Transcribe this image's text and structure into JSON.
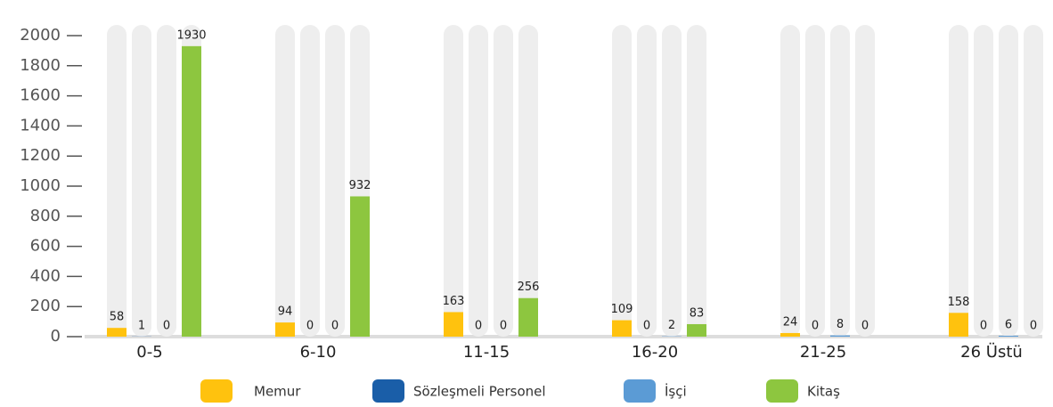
{
  "chart_data": {
    "type": "bar",
    "categories": [
      "0-5",
      "6-10",
      "11-15",
      "16-20",
      "21-25",
      "26 Üstü"
    ],
    "series": [
      {
        "name": "Memur",
        "color": "#ffc20e",
        "values": [
          58,
          94,
          163,
          109,
          24,
          158
        ]
      },
      {
        "name": "Sözleşmeli Personel",
        "color": "#1a5ea8",
        "values": [
          1,
          0,
          0,
          0,
          0,
          0
        ]
      },
      {
        "name": "İşçi",
        "color": "#5b9bd5",
        "values": [
          0,
          0,
          0,
          2,
          8,
          6
        ]
      },
      {
        "name": "Kitaş",
        "color": "#8dc63f",
        "values": [
          1930,
          932,
          256,
          83,
          0,
          0
        ]
      }
    ],
    "ylim": [
      0,
      2000
    ],
    "yticks": [
      0,
      200,
      400,
      600,
      800,
      1000,
      1200,
      1400,
      1600,
      1800,
      2000
    ],
    "legend": "bottom"
  }
}
